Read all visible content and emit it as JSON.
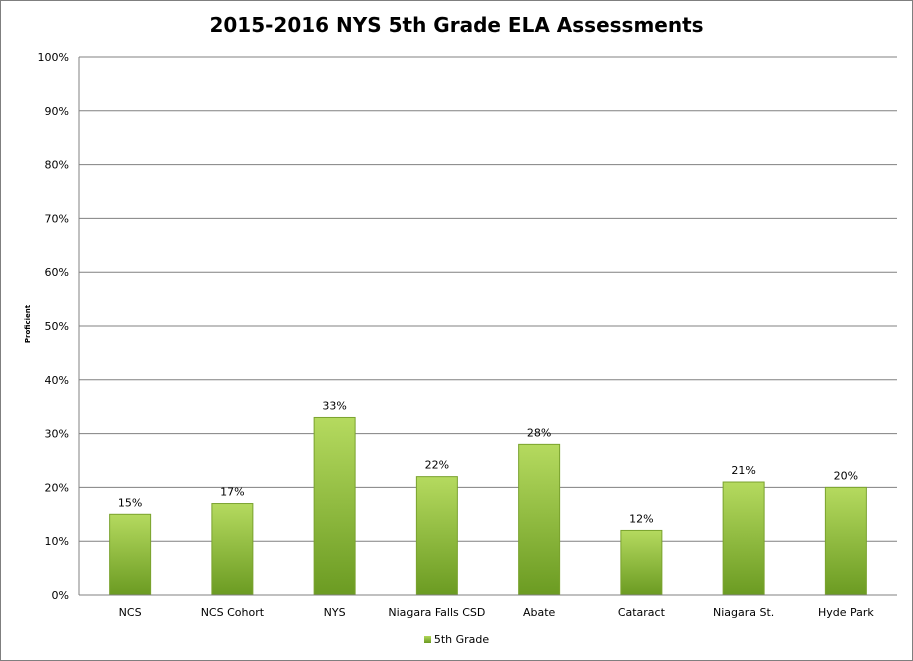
{
  "chart_data": {
    "type": "bar",
    "title": "2015-2016 NYS 5th Grade ELA Assessments",
    "ylabel": "Proficient",
    "xlabel": "",
    "categories": [
      "NCS",
      "NCS Cohort",
      "NYS",
      "Niagara Falls CSD",
      "Abate",
      "Cataract",
      "Niagara St.",
      "Hyde Park"
    ],
    "series": [
      {
        "name": "5th Grade",
        "values": [
          15,
          17,
          33,
          22,
          28,
          12,
          21,
          20
        ]
      }
    ],
    "data_labels": [
      "15%",
      "17%",
      "33%",
      "22%",
      "28%",
      "12%",
      "21%",
      "20%"
    ],
    "ylim": [
      0,
      100
    ],
    "yticks": [
      "0%",
      "10%",
      "20%",
      "30%",
      "40%",
      "50%",
      "60%",
      "70%",
      "80%",
      "90%",
      "100%"
    ],
    "grid": true,
    "legend_position": "bottom",
    "colors": {
      "bar_light": "#b5da5f",
      "bar_dark": "#6b9b22",
      "bar_edge": "#7aa22e",
      "grid": "#808080"
    }
  }
}
